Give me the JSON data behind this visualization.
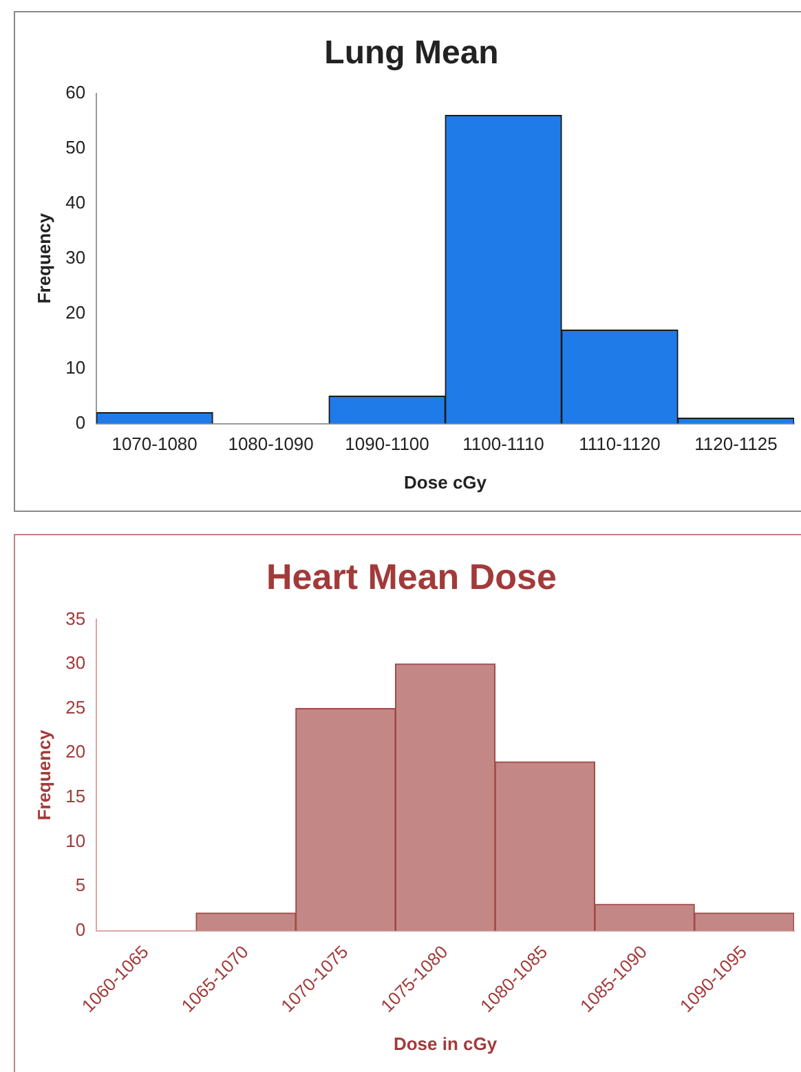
{
  "chart_data": [
    {
      "type": "bar",
      "title": "Lung Mean",
      "xlabel": "Dose cGy",
      "ylabel": "Frequency",
      "categories": [
        "1070-1080",
        "1080-1090",
        "1090-1100",
        "1100-1110",
        "1110-1120",
        "1120-1125"
      ],
      "values": [
        2,
        0,
        5,
        56,
        17,
        1
      ],
      "color": "#1f7be8",
      "ylim": [
        0,
        60
      ],
      "yticks": [
        0,
        10,
        20,
        30,
        40,
        50,
        60
      ],
      "grid": false,
      "legend": false
    },
    {
      "type": "bar",
      "title": "Heart Mean Dose",
      "xlabel": "Dose in cGy",
      "ylabel": "Frequency",
      "categories": [
        "1060-1065",
        "1065-1070",
        "1070-1075",
        "1075-1080",
        "1080-1085",
        "1085-1090",
        "1090-1095"
      ],
      "values": [
        0,
        2,
        25,
        30,
        19,
        3,
        2
      ],
      "color": "#c38886",
      "ylim": [
        0,
        35
      ],
      "yticks": [
        0,
        5,
        10,
        15,
        20,
        25,
        30,
        35
      ],
      "grid": false,
      "legend": false
    }
  ]
}
